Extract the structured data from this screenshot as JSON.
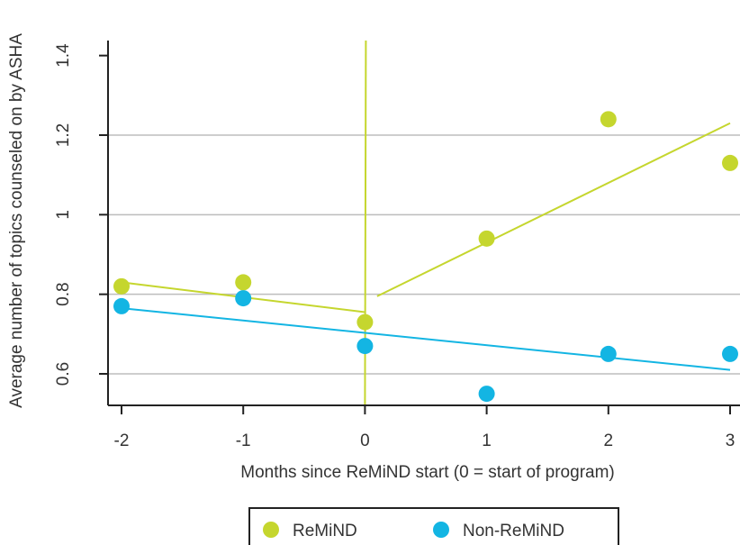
{
  "chart_data": {
    "type": "scatter",
    "title": "",
    "xlabel": "Months since ReMiND start (0 = start of program)",
    "ylabel": "Average number of topics counseled on by ASHA",
    "xlim": [
      -2.1,
      3.1
    ],
    "ylim": [
      0.525,
      1.45
    ],
    "x_ticks": [
      -2,
      -1,
      0,
      1,
      2,
      3
    ],
    "x_tick_labels": [
      "-2",
      "-1",
      "0",
      "1",
      "2",
      "3"
    ],
    "y_ticks": [
      0.6,
      0.8,
      1.0,
      1.2,
      1.4
    ],
    "y_tick_labels": [
      "0.6",
      "0.8",
      "1",
      "1.2",
      "1.4"
    ],
    "grid": "horizontal",
    "vline_x": 0,
    "legend_position": "bottom-center",
    "series": [
      {
        "name": "ReMiND",
        "color": "#c5d62e",
        "x": [
          -2,
          -1,
          0,
          1,
          2,
          3
        ],
        "y": [
          0.82,
          0.83,
          0.73,
          0.94,
          1.24,
          1.13
        ],
        "fit_segments": [
          {
            "x": [
              -2,
              0
            ],
            "y": [
              0.83,
              0.755
            ]
          },
          {
            "x": [
              0.1,
              3
            ],
            "y": [
              0.795,
              1.23
            ]
          }
        ]
      },
      {
        "name": "Non-ReMiND",
        "color": "#13b5e3",
        "x": [
          -2,
          -1,
          0,
          1,
          2,
          3
        ],
        "y": [
          0.77,
          0.79,
          0.67,
          0.55,
          0.65,
          0.65
        ],
        "fit_segments": [
          {
            "x": [
              -2,
              3
            ],
            "y": [
              0.765,
              0.61
            ]
          }
        ]
      }
    ]
  }
}
